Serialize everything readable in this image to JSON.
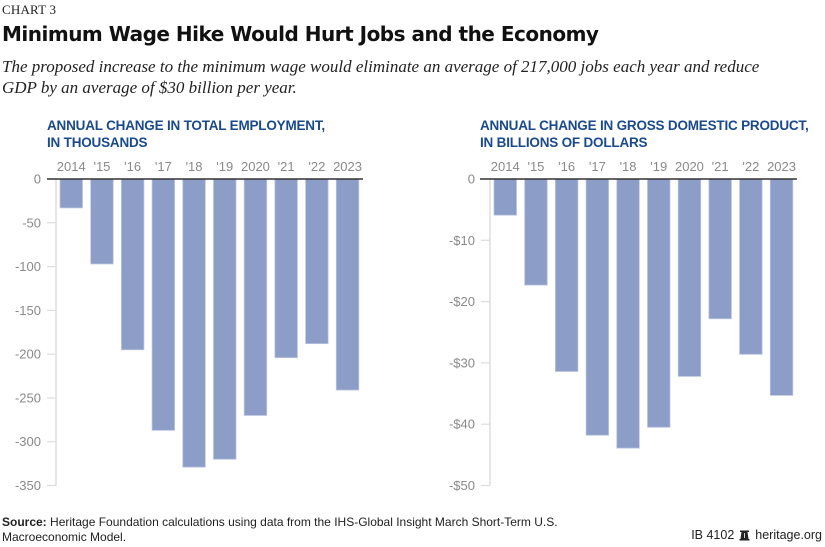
{
  "header": {
    "chart_label": "CHART 3",
    "title": "Minimum Wage Hike Would Hurt Jobs and the Economy",
    "subtitle": "The proposed increase to the minimum wage would eliminate an average of 217,000 jobs each year and reduce GDP by an average of $30 billion per year."
  },
  "colors": {
    "bar": "#8c9dc8",
    "bar_edge": "#b8c4e0",
    "panel_title": "#1a4a8c",
    "tick_text": "#8a8a8a",
    "zero_line": "#333333",
    "axis_line": "#dddddd"
  },
  "chart_data": [
    {
      "type": "bar",
      "title": "ANNUAL CHANGE IN TOTAL EMPLOYMENT, IN THOUSANDS",
      "title_lines": [
        "ANNUAL CHANGE IN TOTAL EMPLOYMENT,",
        "IN THOUSANDS"
      ],
      "categories": [
        "2014",
        "'15",
        "'16",
        "'17",
        "'18",
        "'19",
        "2020",
        "'21",
        "'22",
        "2023"
      ],
      "values": [
        -33,
        -97,
        -195,
        -287,
        -329,
        -320,
        -270,
        -204,
        -188,
        -241
      ],
      "ylim": [
        -350,
        0
      ],
      "yticks": [
        0,
        -50,
        -100,
        -150,
        -200,
        -250,
        -300,
        -350
      ],
      "ytick_labels": [
        "0",
        "-50",
        "-100",
        "-150",
        "-200",
        "-250",
        "-300",
        "-350"
      ],
      "xlabel": "",
      "ylabel": "",
      "x_labels_position": "top",
      "grid": false
    },
    {
      "type": "bar",
      "title": "ANNUAL CHANGE IN GROSS DOMESTIC PRODUCT, IN BILLIONS OF DOLLARS",
      "title_lines": [
        "ANNUAL CHANGE IN GROSS DOMESTIC PRODUCT,",
        "IN BILLIONS OF DOLLARS"
      ],
      "categories": [
        "2014",
        "'15",
        "'16",
        "'17",
        "'18",
        "'19",
        "2020",
        "'21",
        "'22",
        "2023"
      ],
      "values": [
        -5.9,
        -17.3,
        -31.4,
        -41.8,
        -43.9,
        -40.5,
        -32.2,
        -22.8,
        -28.6,
        -35.3
      ],
      "ylim": [
        -50,
        0
      ],
      "yticks": [
        0,
        -10,
        -20,
        -30,
        -40,
        -50
      ],
      "ytick_labels": [
        "0",
        "-$10",
        "-$20",
        "-$30",
        "-$40",
        "-$50"
      ],
      "xlabel": "",
      "ylabel": "",
      "x_labels_position": "top",
      "grid": false
    }
  ],
  "footer": {
    "source_label": "Source:",
    "source_text": " Heritage Foundation calculations using data from the IHS-Global Insight March Short-Term U.S. Macroeconomic Model.",
    "report_id": "IB 4102",
    "logo_icon": "liberty-bell-icon",
    "site": "heritage.org"
  }
}
